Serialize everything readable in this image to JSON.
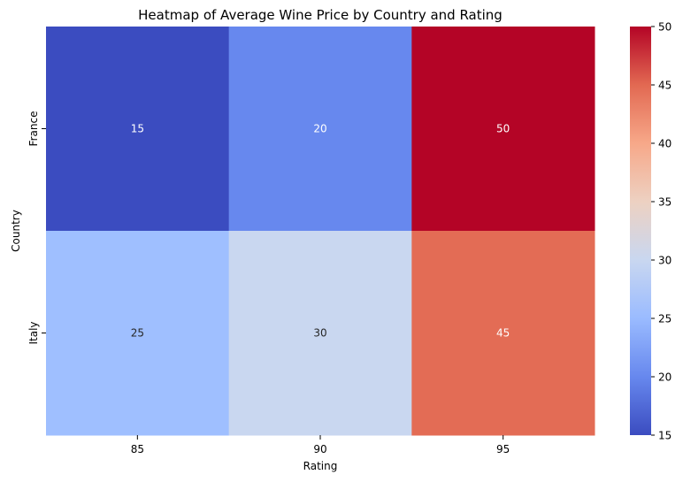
{
  "chart_data": {
    "type": "heatmap",
    "title": "Heatmap of Average Wine Price by Country and Rating",
    "xlabel": "Rating",
    "ylabel": "Country",
    "x_categories": [
      "85",
      "90",
      "95"
    ],
    "y_categories": [
      "France",
      "Italy"
    ],
    "values": [
      [
        15,
        20,
        50
      ],
      [
        25,
        30,
        45
      ]
    ],
    "colorbar": {
      "range": [
        15,
        50
      ],
      "ticks": [
        15,
        20,
        25,
        30,
        35,
        40,
        45,
        50
      ],
      "colormap": "coolwarm"
    },
    "cell_colors": {
      "15": "#3b4cc0",
      "20": "#6788ee",
      "25": "#9fbfff",
      "30": "#c9d7f0",
      "45": "#e36c55",
      "50": "#b40426"
    },
    "annotation_colors": {
      "light": "#ffffff",
      "dark": "#262626"
    }
  }
}
